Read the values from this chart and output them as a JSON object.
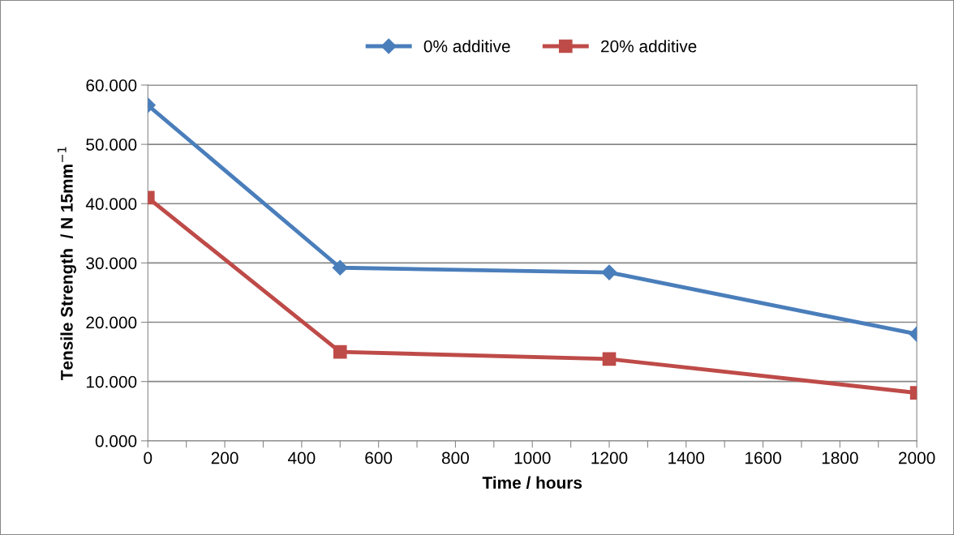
{
  "chart_data": {
    "type": "line",
    "xlabel": "Time / hours",
    "ylabel": "Tensile Strength  / N 15mm$^{−1}$",
    "x": [
      0,
      500,
      1200,
      2000
    ],
    "series": [
      {
        "name": "0% additive",
        "color": "#4a7ebb",
        "marker": "diamond",
        "values": [
          56.6,
          29.2,
          28.4,
          18.0
        ]
      },
      {
        "name": "20% additive",
        "color": "#be4b48",
        "marker": "square",
        "values": [
          41.0,
          15.0,
          13.8,
          8.1
        ]
      }
    ],
    "xlim": [
      0,
      2000
    ],
    "xticks": [
      0,
      {
        "value": 100,
        "label": null
      },
      200,
      {
        "value": 300,
        "label": null
      },
      400,
      {
        "value": 500,
        "label": null
      },
      600,
      {
        "value": 700,
        "label": null
      },
      800,
      {
        "value": 900,
        "label": null
      },
      1000,
      {
        "value": 1100,
        "label": null
      },
      1200,
      {
        "value": 1300,
        "label": null
      },
      1400,
      {
        "value": 1500,
        "label": null
      },
      1600,
      {
        "value": 1700,
        "label": null
      },
      1800,
      {
        "value": 1900,
        "label": null
      },
      2000
    ],
    "ylim": [
      0,
      60
    ],
    "yticks": [
      {
        "value": 0,
        "label": "0.000"
      },
      {
        "value": 10,
        "label": "10.000"
      },
      {
        "value": 20,
        "label": "20.000"
      },
      {
        "value": 30,
        "label": "30.000"
      },
      {
        "value": 40,
        "label": "40.000"
      },
      {
        "value": 50,
        "label": "50.000"
      },
      {
        "value": 60,
        "label": "60.000"
      }
    ],
    "grid": "y",
    "legend": "top",
    "line_style": "solid"
  }
}
